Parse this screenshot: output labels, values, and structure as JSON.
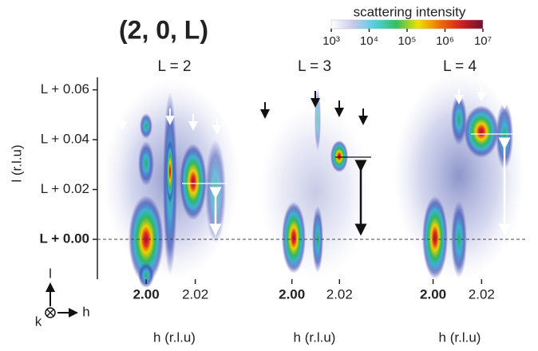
{
  "figure": {
    "title": "(2, 0, L)",
    "colorbar": {
      "label": "scattering intensity",
      "log": true,
      "lim": [
        1000,
        10000000
      ],
      "ticks": [
        {
          "value": 1000,
          "label": "10³"
        },
        {
          "value": 10000,
          "label": "10⁴"
        },
        {
          "value": 100000,
          "label": "10⁵"
        },
        {
          "value": 1000000,
          "label": "10⁶"
        },
        {
          "value": 10000000,
          "label": "10⁷"
        }
      ],
      "colors": [
        "#ffffff",
        "#c8c8ec",
        "#50d0e0",
        "#30c060",
        "#f0e000",
        "#f07000",
        "#d02020",
        "#701030"
      ]
    },
    "axes_glyph": {
      "up": "l",
      "right": "h",
      "into": "k"
    }
  },
  "chart_data": [
    {
      "type": "heatmap",
      "title": "L = 2",
      "xlabel": "h (r.l.u)",
      "ylabel": "l (r.l.u)",
      "xlim": [
        1.985,
        2.038
      ],
      "xticks": [
        {
          "value": 2.0,
          "label": "2.00",
          "bold": true
        },
        2.02
      ],
      "ylim": [
        -0.016,
        0.065
      ],
      "yticks": [
        {
          "value": 0.06,
          "label": "L + 0.06"
        },
        {
          "value": 0.04,
          "label": "L + 0.04"
        },
        {
          "value": 0.02,
          "label": "L + 0.02"
        },
        {
          "value": 0.0,
          "label": "L + 0.00",
          "bold": true
        }
      ]
    },
    {
      "type": "heatmap",
      "title": "L = 3",
      "xlabel": "h (r.l.u)",
      "xlim": [
        1.984,
        2.035
      ],
      "xticks": [
        {
          "value": 2.0,
          "label": "2.00",
          "bold": true
        },
        2.02
      ]
    },
    {
      "type": "heatmap",
      "title": "L = 4",
      "xlabel": "h (r.l.u)",
      "xlim": [
        1.985,
        2.037
      ],
      "xticks": [
        {
          "value": 2.0,
          "label": "2.00",
          "bold": true
        },
        2.02
      ]
    }
  ]
}
